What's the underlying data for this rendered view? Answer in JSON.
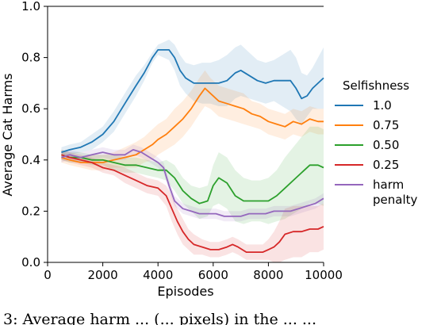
{
  "chart_data": {
    "type": "line",
    "xlabel": "Episodes",
    "ylabel": "Average Cat Harms",
    "xlim": [
      0,
      10000
    ],
    "ylim": [
      0,
      1.0
    ],
    "xticks": [
      0,
      2000,
      4000,
      6000,
      8000,
      10000
    ],
    "yticks": [
      0.0,
      0.2,
      0.4,
      0.6,
      0.8,
      1.0
    ],
    "xtick_labels": [
      "0",
      "2000",
      "4000",
      "6000",
      "8000",
      "10000"
    ],
    "ytick_labels": [
      "0.0",
      "0.2",
      "0.4",
      "0.6",
      "0.8",
      "1.0"
    ],
    "grid": false,
    "legend": {
      "title": "Selfishness",
      "placement": "right-outside"
    },
    "series": [
      {
        "name": "1.0",
        "color": "#1f77b4",
        "x": [
          500,
          800,
          1200,
          1600,
          2000,
          2400,
          2800,
          3200,
          3500,
          3800,
          4000,
          4200,
          4400,
          4600,
          4800,
          5000,
          5300,
          5600,
          5900,
          6200,
          6500,
          6800,
          7000,
          7300,
          7600,
          7900,
          8200,
          8500,
          8800,
          9000,
          9200,
          9400,
          9600,
          9800,
          10000
        ],
        "y": [
          0.43,
          0.44,
          0.45,
          0.47,
          0.5,
          0.55,
          0.62,
          0.69,
          0.74,
          0.8,
          0.83,
          0.83,
          0.83,
          0.8,
          0.75,
          0.72,
          0.7,
          0.7,
          0.7,
          0.7,
          0.71,
          0.74,
          0.75,
          0.73,
          0.71,
          0.7,
          0.71,
          0.71,
          0.71,
          0.68,
          0.64,
          0.65,
          0.68,
          0.7,
          0.72
        ],
        "band": [
          0.02,
          0.02,
          0.02,
          0.03,
          0.03,
          0.04,
          0.04,
          0.04,
          0.03,
          0.02,
          0.02,
          0.03,
          0.04,
          0.05,
          0.06,
          0.06,
          0.07,
          0.08,
          0.08,
          0.09,
          0.1,
          0.1,
          0.1,
          0.09,
          0.08,
          0.08,
          0.08,
          0.1,
          0.12,
          0.12,
          0.1,
          0.08,
          0.08,
          0.1,
          0.12
        ]
      },
      {
        "name": "0.75",
        "color": "#ff7f0e",
        "x": [
          500,
          800,
          1200,
          1600,
          2000,
          2400,
          2800,
          3200,
          3500,
          3800,
          4000,
          4300,
          4600,
          4900,
          5200,
          5500,
          5700,
          5900,
          6200,
          6500,
          6800,
          7100,
          7400,
          7700,
          8000,
          8300,
          8600,
          8900,
          9200,
          9500,
          9800,
          10000
        ],
        "y": [
          0.41,
          0.4,
          0.39,
          0.39,
          0.39,
          0.4,
          0.41,
          0.42,
          0.44,
          0.46,
          0.48,
          0.5,
          0.53,
          0.56,
          0.6,
          0.65,
          0.68,
          0.66,
          0.63,
          0.62,
          0.61,
          0.6,
          0.58,
          0.57,
          0.55,
          0.54,
          0.53,
          0.55,
          0.54,
          0.56,
          0.55,
          0.55
        ],
        "band": [
          0.02,
          0.02,
          0.02,
          0.03,
          0.03,
          0.03,
          0.04,
          0.05,
          0.05,
          0.06,
          0.06,
          0.06,
          0.07,
          0.07,
          0.07,
          0.07,
          0.07,
          0.06,
          0.06,
          0.06,
          0.06,
          0.06,
          0.05,
          0.05,
          0.05,
          0.05,
          0.05,
          0.05,
          0.05,
          0.05,
          0.05,
          0.05
        ]
      },
      {
        "name": "0.50",
        "color": "#2ca02c",
        "x": [
          500,
          800,
          1200,
          1600,
          2000,
          2400,
          2800,
          3200,
          3600,
          4000,
          4300,
          4600,
          4900,
          5200,
          5500,
          5800,
          6000,
          6200,
          6500,
          6800,
          7100,
          7400,
          7700,
          8000,
          8300,
          8600,
          8900,
          9200,
          9500,
          9800,
          10000
        ],
        "y": [
          0.42,
          0.41,
          0.41,
          0.4,
          0.4,
          0.39,
          0.38,
          0.38,
          0.37,
          0.36,
          0.36,
          0.33,
          0.28,
          0.25,
          0.23,
          0.24,
          0.3,
          0.33,
          0.31,
          0.26,
          0.24,
          0.24,
          0.24,
          0.24,
          0.26,
          0.29,
          0.32,
          0.35,
          0.38,
          0.38,
          0.37
        ],
        "band": [
          0.02,
          0.02,
          0.02,
          0.02,
          0.02,
          0.03,
          0.03,
          0.03,
          0.03,
          0.03,
          0.04,
          0.05,
          0.05,
          0.05,
          0.06,
          0.06,
          0.08,
          0.1,
          0.1,
          0.1,
          0.09,
          0.08,
          0.08,
          0.09,
          0.1,
          0.12,
          0.13,
          0.14,
          0.15,
          0.15,
          0.15
        ]
      },
      {
        "name": "0.25",
        "color": "#d62728",
        "x": [
          500,
          800,
          1200,
          1600,
          2000,
          2400,
          2800,
          3200,
          3600,
          4000,
          4300,
          4500,
          4700,
          4900,
          5100,
          5300,
          5600,
          5900,
          6200,
          6500,
          6700,
          6900,
          7200,
          7500,
          7800,
          8000,
          8200,
          8400,
          8600,
          8900,
          9200,
          9500,
          9800,
          10000
        ],
        "y": [
          0.42,
          0.41,
          0.4,
          0.39,
          0.37,
          0.36,
          0.34,
          0.32,
          0.3,
          0.29,
          0.26,
          0.21,
          0.16,
          0.12,
          0.09,
          0.07,
          0.06,
          0.05,
          0.05,
          0.06,
          0.07,
          0.06,
          0.04,
          0.04,
          0.04,
          0.05,
          0.06,
          0.08,
          0.11,
          0.12,
          0.12,
          0.13,
          0.13,
          0.14
        ],
        "band": [
          0.02,
          0.02,
          0.02,
          0.02,
          0.02,
          0.02,
          0.03,
          0.03,
          0.03,
          0.03,
          0.04,
          0.05,
          0.05,
          0.05,
          0.04,
          0.04,
          0.03,
          0.03,
          0.03,
          0.03,
          0.03,
          0.03,
          0.03,
          0.03,
          0.03,
          0.04,
          0.06,
          0.08,
          0.1,
          0.1,
          0.1,
          0.09,
          0.09,
          0.09
        ]
      },
      {
        "name": "harm penalty",
        "label_lines": [
          "harm",
          "penalty"
        ],
        "color": "#9467bd",
        "x": [
          500,
          800,
          1200,
          1600,
          2000,
          2400,
          2800,
          3100,
          3400,
          3700,
          4000,
          4200,
          4400,
          4600,
          4900,
          5200,
          5500,
          5800,
          6100,
          6400,
          6700,
          7000,
          7300,
          7600,
          7900,
          8200,
          8500,
          8800,
          9100,
          9400,
          9700,
          10000
        ],
        "y": [
          0.41,
          0.42,
          0.41,
          0.42,
          0.43,
          0.42,
          0.42,
          0.44,
          0.43,
          0.41,
          0.39,
          0.37,
          0.3,
          0.24,
          0.21,
          0.2,
          0.19,
          0.19,
          0.19,
          0.18,
          0.18,
          0.18,
          0.19,
          0.19,
          0.19,
          0.2,
          0.2,
          0.2,
          0.21,
          0.22,
          0.23,
          0.25
        ],
        "band": [
          0.02,
          0.02,
          0.02,
          0.02,
          0.02,
          0.02,
          0.02,
          0.02,
          0.02,
          0.02,
          0.02,
          0.02,
          0.02,
          0.02,
          0.02,
          0.02,
          0.02,
          0.02,
          0.02,
          0.02,
          0.02,
          0.02,
          0.02,
          0.02,
          0.02,
          0.02,
          0.02,
          0.02,
          0.02,
          0.02,
          0.02,
          0.02
        ]
      }
    ]
  }
}
